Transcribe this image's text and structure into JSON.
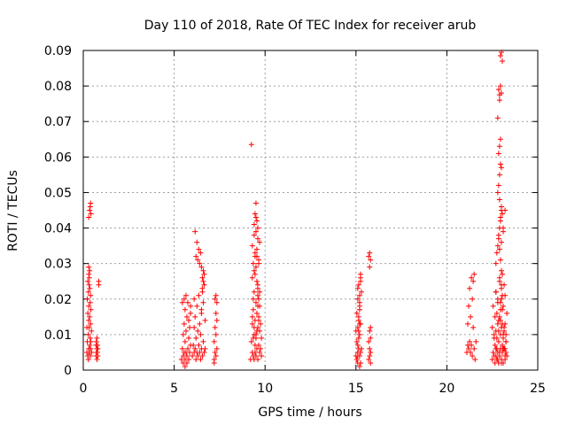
{
  "chart_data": {
    "type": "scatter",
    "title": "Day 110 of 2018, Rate Of TEC Index for receiver arub",
    "xlabel": "GPS time / hours",
    "ylabel": "ROTI / TECUs",
    "xlim": [
      0,
      25
    ],
    "ylim": [
      0,
      0.09
    ],
    "xticks": [
      0,
      5,
      10,
      15,
      20,
      25
    ],
    "xtick_labels": [
      "0",
      "5",
      "10",
      "15",
      "20",
      "25"
    ],
    "yticks": [
      0,
      0.01,
      0.02,
      0.03,
      0.04,
      0.05,
      0.06,
      0.07,
      0.08,
      0.09
    ],
    "ytick_labels": [
      "0",
      "0.01",
      "0.02",
      "0.03",
      "0.04",
      "0.05",
      "0.06",
      "0.07",
      "0.08",
      "0.09"
    ],
    "grid": true,
    "marker": "+",
    "color": "#ff0000",
    "series": [
      {
        "x": [
          0.2,
          0.2,
          0.22,
          0.22,
          0.25,
          0.25,
          0.25,
          0.28,
          0.28,
          0.28,
          0.3,
          0.3,
          0.3,
          0.3,
          0.32,
          0.32,
          0.32,
          0.35,
          0.35,
          0.35,
          0.38,
          0.38,
          0.38,
          0.4,
          0.4,
          0.4,
          0.42,
          0.42,
          0.45,
          0.45,
          0.3,
          0.35,
          0.38,
          0.4,
          0.42,
          0.3,
          0.33,
          0.36,
          0.7,
          0.7,
          0.72,
          0.72,
          0.75,
          0.75,
          0.75,
          0.78,
          0.78,
          0.8,
          0.8,
          0.85,
          0.85,
          5.4,
          5.45,
          5.5,
          5.5,
          5.55,
          5.55,
          5.6,
          5.6,
          5.6,
          5.65,
          5.65,
          5.7,
          5.7,
          5.75,
          5.75,
          5.8,
          5.8,
          5.85,
          5.85,
          5.9,
          5.9,
          5.5,
          5.6,
          5.7,
          5.8,
          5.9,
          5.45,
          5.55,
          5.65,
          6.0,
          6.05,
          6.1,
          6.1,
          6.15,
          6.15,
          6.2,
          6.2,
          6.25,
          6.25,
          6.3,
          6.3,
          6.35,
          6.35,
          6.4,
          6.4,
          6.45,
          6.45,
          6.5,
          6.5,
          6.55,
          6.55,
          6.6,
          6.6,
          6.65,
          6.65,
          6.7,
          6.7,
          6.2,
          6.3,
          6.4,
          6.5,
          6.6,
          6.15,
          6.25,
          6.35,
          6.45,
          6.55,
          6.65,
          6.1,
          6.5,
          6.55,
          6.6,
          7.2,
          7.2,
          7.25,
          7.25,
          7.3,
          7.3,
          7.3,
          7.35,
          7.35,
          7.35,
          7.25,
          7.3,
          7.2,
          9.2,
          9.25,
          9.3,
          9.3,
          9.35,
          9.35,
          9.4,
          9.4,
          9.4,
          9.45,
          9.45,
          9.45,
          9.5,
          9.5,
          9.5,
          9.55,
          9.55,
          9.55,
          9.6,
          9.6,
          9.6,
          9.65,
          9.65,
          9.65,
          9.7,
          9.7,
          9.7,
          9.75,
          9.75,
          9.8,
          9.8,
          9.3,
          9.4,
          9.5,
          9.6,
          9.7,
          9.35,
          9.45,
          9.55,
          9.65,
          9.4,
          9.5,
          9.6,
          9.45,
          9.55,
          9.5,
          9.6,
          9.3,
          9.4,
          9.5,
          9.6,
          9.7,
          9.35,
          9.45,
          9.55,
          9.65,
          9.3,
          9.4,
          9.5,
          9.6,
          9.45,
          9.55,
          9.65,
          9.25,
          9.35,
          15.0,
          15.0,
          15.05,
          15.05,
          15.05,
          15.1,
          15.1,
          15.1,
          15.15,
          15.15,
          15.15,
          15.2,
          15.2,
          15.2,
          15.25,
          15.25,
          15.25,
          15.3,
          15.3,
          15.1,
          15.15,
          15.2,
          15.25,
          15.05,
          15.1,
          15.15,
          15.2,
          15.25,
          15.1,
          15.2,
          15.15,
          15.2,
          15.25,
          15.1,
          15.2,
          15.7,
          15.7,
          15.75,
          15.75,
          15.75,
          15.8,
          15.8,
          15.8,
          15.75,
          15.7,
          15.75,
          15.8,
          15.8,
          21.1,
          21.15,
          21.15,
          21.2,
          21.2,
          21.25,
          21.25,
          21.3,
          21.3,
          21.35,
          21.35,
          21.4,
          21.45,
          21.5,
          21.4,
          21.45,
          21.5,
          21.55,
          21.6,
          22.5,
          22.5,
          22.55,
          22.55,
          22.6,
          22.6,
          22.65,
          22.65,
          22.7,
          22.7,
          22.75,
          22.75,
          22.8,
          22.8,
          22.85,
          22.85,
          22.9,
          22.9,
          22.95,
          22.95,
          23.0,
          23.0,
          23.05,
          23.05,
          23.1,
          23.1,
          23.15,
          23.15,
          23.2,
          23.2,
          23.25,
          23.25,
          23.3,
          23.3,
          22.7,
          22.75,
          22.8,
          22.85,
          22.9,
          22.95,
          23.0,
          23.05,
          23.1,
          22.8,
          22.85,
          22.9,
          22.95,
          23.0,
          22.85,
          22.9,
          22.95,
          22.8,
          22.9,
          23.0,
          22.85,
          22.95,
          22.9,
          22.95,
          23.0,
          23.05,
          22.9,
          23.0,
          22.95,
          22.85,
          22.9,
          23.0,
          23.1,
          23.2,
          22.95,
          23.0,
          23.05,
          23.0,
          23.05,
          22.95,
          22.6,
          22.65,
          22.7,
          22.75,
          22.8,
          22.85,
          22.9,
          22.95,
          23.0,
          23.05,
          23.1,
          23.15,
          23.2,
          23.25,
          22.7,
          22.8,
          22.9,
          23.0,
          23.1,
          23.2,
          22.75,
          22.85,
          22.95,
          23.05,
          23.15,
          23.25,
          22.7,
          22.8,
          22.9,
          23.0,
          23.1,
          23.2
        ],
        "y": [
          0.005,
          0.012,
          0.008,
          0.02,
          0.004,
          0.016,
          0.025,
          0.003,
          0.01,
          0.022,
          0.006,
          0.014,
          0.018,
          0.027,
          0.005,
          0.012,
          0.024,
          0.007,
          0.015,
          0.028,
          0.004,
          0.009,
          0.019,
          0.006,
          0.013,
          0.021,
          0.008,
          0.017,
          0.005,
          0.011,
          0.043,
          0.045,
          0.046,
          0.047,
          0.044,
          0.029,
          0.026,
          0.023,
          0.004,
          0.007,
          0.005,
          0.008,
          0.003,
          0.006,
          0.009,
          0.005,
          0.007,
          0.004,
          0.006,
          0.025,
          0.024,
          0.003,
          0.006,
          0.004,
          0.01,
          0.005,
          0.013,
          0.003,
          0.008,
          0.017,
          0.005,
          0.011,
          0.004,
          0.015,
          0.006,
          0.019,
          0.003,
          0.009,
          0.005,
          0.012,
          0.007,
          0.016,
          0.002,
          0.001,
          0.002,
          0.014,
          0.018,
          0.019,
          0.02,
          0.021,
          0.004,
          0.007,
          0.005,
          0.012,
          0.006,
          0.015,
          0.003,
          0.009,
          0.005,
          0.018,
          0.004,
          0.011,
          0.007,
          0.021,
          0.005,
          0.013,
          0.003,
          0.01,
          0.006,
          0.016,
          0.004,
          0.023,
          0.008,
          0.019,
          0.005,
          0.027,
          0.006,
          0.014,
          0.032,
          0.031,
          0.03,
          0.029,
          0.028,
          0.039,
          0.036,
          0.034,
          0.033,
          0.026,
          0.024,
          0.02,
          0.017,
          0.022,
          0.025,
          0.003,
          0.008,
          0.005,
          0.012,
          0.004,
          0.01,
          0.016,
          0.006,
          0.014,
          0.019,
          0.02,
          0.021,
          0.002,
          0.003,
          0.008,
          0.005,
          0.013,
          0.004,
          0.017,
          0.003,
          0.01,
          0.022,
          0.005,
          0.014,
          0.027,
          0.004,
          0.009,
          0.019,
          0.006,
          0.016,
          0.025,
          0.003,
          0.012,
          0.021,
          0.007,
          0.015,
          0.03,
          0.005,
          0.011,
          0.018,
          0.006,
          0.013,
          0.004,
          0.009,
          0.035,
          0.038,
          0.039,
          0.037,
          0.036,
          0.03,
          0.032,
          0.034,
          0.031,
          0.041,
          0.043,
          0.04,
          0.044,
          0.042,
          0.047,
          0.024,
          0.026,
          0.028,
          0.029,
          0.023,
          0.022,
          0.02,
          0.033,
          0.032,
          0.02,
          0.015,
          0.012,
          0.01,
          0.018,
          0.007,
          0.011,
          0.014,
          0.0635,
          0.009,
          0.004,
          0.011,
          0.003,
          0.008,
          0.016,
          0.005,
          0.012,
          0.02,
          0.006,
          0.014,
          0.024,
          0.004,
          0.01,
          0.019,
          0.005,
          0.013,
          0.027,
          0.006,
          0.022,
          0.002,
          0.009,
          0.017,
          0.026,
          0.003,
          0.007,
          0.015,
          0.021,
          0.025,
          0.023,
          0.018,
          0.011,
          0.001,
          0.002,
          0.004,
          0.013,
          0.003,
          0.008,
          0.004,
          0.006,
          0.011,
          0.005,
          0.009,
          0.012,
          0.033,
          0.032,
          0.029,
          0.031,
          0.002,
          0.005,
          0.007,
          0.013,
          0.006,
          0.018,
          0.008,
          0.023,
          0.005,
          0.015,
          0.007,
          0.026,
          0.004,
          0.012,
          0.006,
          0.02,
          0.025,
          0.027,
          0.003,
          0.008,
          0.003,
          0.012,
          0.005,
          0.018,
          0.004,
          0.01,
          0.002,
          0.015,
          0.006,
          0.022,
          0.003,
          0.009,
          0.005,
          0.019,
          0.002,
          0.011,
          0.004,
          0.026,
          0.006,
          0.014,
          0.003,
          0.02,
          0.005,
          0.017,
          0.002,
          0.01,
          0.006,
          0.024,
          0.003,
          0.013,
          0.005,
          0.008,
          0.004,
          0.016,
          0.03,
          0.033,
          0.035,
          0.038,
          0.04,
          0.042,
          0.045,
          0.044,
          0.04,
          0.05,
          0.052,
          0.055,
          0.058,
          0.057,
          0.061,
          0.063,
          0.065,
          0.071,
          0.076,
          0.078,
          0.079,
          0.08,
          0.0775,
          0.0885,
          0.0895,
          0.087,
          0.048,
          0.046,
          0.043,
          0.037,
          0.034,
          0.036,
          0.039,
          0.045,
          0.031,
          0.028,
          0.027,
          0.024,
          0.021,
          0.019,
          0.009,
          0.007,
          0.011,
          0.006,
          0.013,
          0.008,
          0.015,
          0.01,
          0.012,
          0.007,
          0.009,
          0.011,
          0.006,
          0.008,
          0.004,
          0.003,
          0.005,
          0.002,
          0.006,
          0.004,
          0.016,
          0.014,
          0.017,
          0.013,
          0.012,
          0.01,
          0.022,
          0.02,
          0.025,
          0.023,
          0.018,
          0.021
        ]
      }
    ]
  }
}
